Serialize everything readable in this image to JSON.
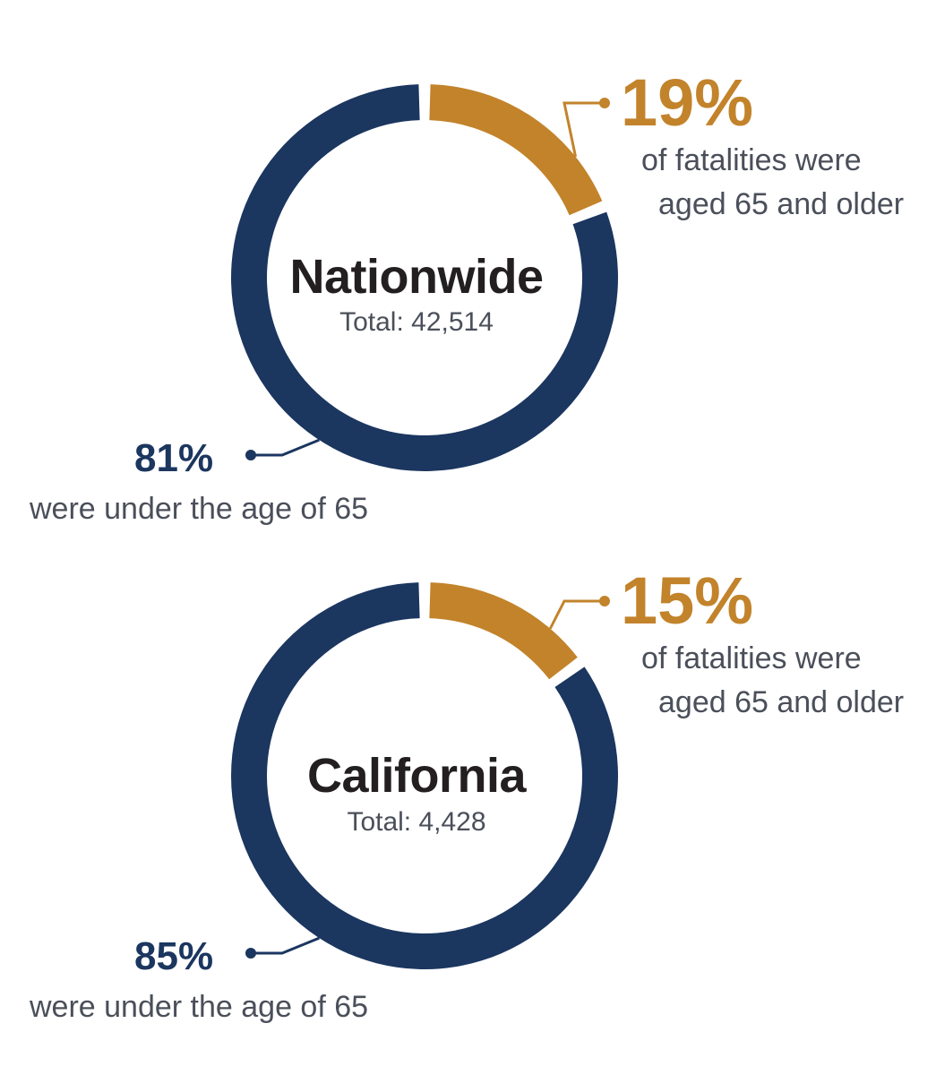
{
  "chart_data": [
    {
      "type": "pie",
      "title": "Nationwide",
      "total_label": "Total: 42,514",
      "slices": [
        {
          "label": "aged 65 and older",
          "value": 19,
          "color": "#c2832b",
          "pct_label": "19%",
          "text_lines": [
            "of fatalities were",
            "aged 65 and older"
          ]
        },
        {
          "label": "under the age of 65",
          "value": 81,
          "color": "#1b365f",
          "pct_label": "81%",
          "text_lines": [
            "were under the age of 65"
          ]
        }
      ]
    },
    {
      "type": "pie",
      "title": "California",
      "total_label": "Total: 4,428",
      "slices": [
        {
          "label": "aged 65 and older",
          "value": 15,
          "color": "#c2832b",
          "pct_label": "15%",
          "text_lines": [
            "of fatalities were",
            "aged 65 and older"
          ]
        },
        {
          "label": "under the age of 65",
          "value": 85,
          "color": "#1b365f",
          "pct_label": "85%",
          "text_lines": [
            "were under the age of 65"
          ]
        }
      ]
    }
  ]
}
